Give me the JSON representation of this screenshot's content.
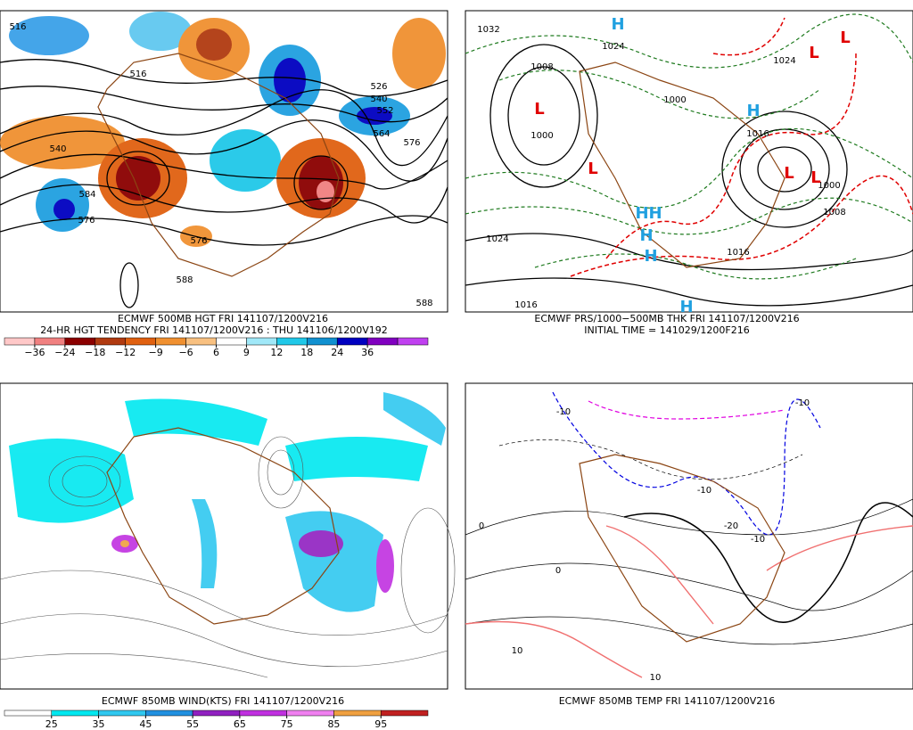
{
  "panels": [
    {
      "captions": [
        "ECMWF 500MB HGT FRI 141107/1200V216",
        "24-HR HGT TENDENCY FRI 141107/1200V216 : THU 141106/1200V192"
      ],
      "contour_labels": [
        "516",
        "516",
        "540",
        "584",
        "576",
        "576",
        "588",
        "526",
        "540",
        "552",
        "564",
        "576",
        "588"
      ],
      "colorbar": {
        "colors": [
          "#ffc8c8",
          "#f08080",
          "#8b0000",
          "#b03a10",
          "#e06010",
          "#f09030",
          "#f8c080",
          "#ffffff",
          "#a0e8f8",
          "#20c8e8",
          "#1090d0",
          "#0000c0",
          "#8000c0",
          "#c040f0"
        ],
        "ticks": [
          {
            "value": -36,
            "label": "−36"
          },
          {
            "value": -24,
            "label": "−24"
          },
          {
            "value": -18,
            "label": "−18"
          },
          {
            "value": -12,
            "label": "−12"
          },
          {
            "value": -9,
            "label": "−9"
          },
          {
            "value": -6,
            "label": "−6"
          },
          6,
          9,
          12,
          18,
          24,
          36
        ]
      }
    },
    {
      "captions": [
        "ECMWF PRS/1000−500MB THK FRI 141107/1200V216",
        "INITIAL TIME = 141029/1200F216"
      ],
      "contour_labels": [
        "1032",
        "1024",
        "1000",
        "1008",
        "1000",
        "1024",
        "1016",
        "1008",
        "1016",
        "1016",
        "1000",
        "1024"
      ],
      "symbols": [
        "H",
        "L",
        "L",
        "H",
        "H",
        "H",
        "H",
        "H",
        "L",
        "L",
        "L",
        "L",
        "H"
      ]
    },
    {
      "captions": [
        "ECMWF 850MB WIND(KTS) FRI 141107/1200V216"
      ],
      "colorbar": {
        "colors": [
          "#ffffff",
          "#00e8f0",
          "#30c8f0",
          "#2090e0",
          "#9020c0",
          "#c030e0",
          "#f080f0",
          "#f0a040",
          "#c02020"
        ],
        "ticks": [
          25,
          35,
          45,
          55,
          65,
          75,
          85,
          95
        ]
      }
    },
    {
      "captions": [
        "ECMWF 850MB TEMP FRI 141107/1200V216"
      ],
      "contour_labels": [
        "-10",
        "-10",
        "-10",
        "-10",
        "0",
        "0",
        "10",
        "10",
        "-20"
      ]
    }
  ]
}
